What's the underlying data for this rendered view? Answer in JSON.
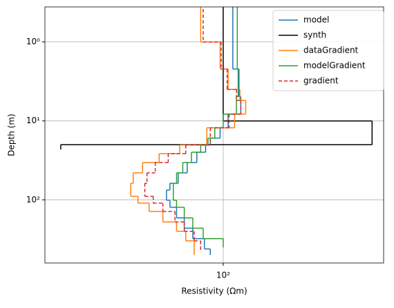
{
  "chart_data": {
    "type": "step",
    "xlabel": "Resistivity (Ωm)",
    "ylabel": "Depth (m)",
    "xscale": "log",
    "yscale": "log",
    "invert_y": true,
    "grid": true,
    "legend": "upper right",
    "xlim": [
      17.1,
      490
    ],
    "xticks": [
      {
        "value": 100,
        "label": "10²"
      }
    ],
    "ylim": [
      0.36,
      630
    ],
    "yticks": [
      {
        "value": 1,
        "label": "10⁰"
      },
      {
        "value": 10,
        "label": "10¹"
      },
      {
        "value": 100,
        "label": "10²"
      }
    ],
    "series": [
      {
        "name": "model",
        "color": "#1f77b4",
        "dash": false,
        "values": [
          110,
          116,
          119,
          105,
          97,
          88,
          84,
          77,
          70,
          64,
          59,
          57,
          59,
          63,
          68,
          74,
          83,
          88
        ],
        "depths": [
          2.2,
          4.9,
          8.2,
          12.2,
          16.5,
          20.2,
          24.9,
          33.6,
          45.5,
          61.6,
          75,
          101,
          124,
          169,
          228,
          309,
          418,
          500
        ]
      },
      {
        "name": "synth",
        "color": "#000000",
        "dash": false,
        "values": [
          100,
          437,
          20
        ],
        "depths": [
          10,
          20,
          23
        ]
      },
      {
        "name": "dataGradient",
        "color": "#ff7f0e",
        "dash": false,
        "values": [
          80,
          97,
          105,
          118,
          125,
          112,
          85,
          65,
          53,
          45,
          41,
          40,
          43,
          48,
          55,
          63,
          69,
          75
        ],
        "depths": [
          1.0,
          2.2,
          4.0,
          5.5,
          8.2,
          12.2,
          20.2,
          26,
          33.6,
          45.5,
          61.6,
          90,
          110,
          140,
          190,
          250,
          330,
          500
        ]
      },
      {
        "name": "modelGradient",
        "color": "#2ca02c",
        "dash": false,
        "values": [
          115,
          117,
          114,
          100,
          92,
          86,
          80,
          73,
          67,
          63,
          61,
          63,
          68,
          74,
          82,
          100
        ],
        "depths": [
          2.2,
          4.9,
          8.2,
          12.2,
          16.5,
          20.2,
          24.9,
          33.6,
          45.5,
          61.6,
          101,
          124,
          169,
          228,
          309,
          400
        ]
      },
      {
        "name": "gradient",
        "color": "#d62728",
        "dash": true,
        "values": [
          82,
          98,
          104,
          114,
          119,
          106,
          88,
          69,
          58,
          51,
          47,
          46,
          50,
          55,
          62,
          68,
          75,
          80
        ],
        "depths": [
          1.0,
          2.2,
          4.0,
          5.5,
          8.2,
          12.2,
          20.2,
          26,
          33.6,
          45.5,
          61.6,
          90,
          110,
          140,
          190,
          250,
          330,
          450
        ]
      }
    ]
  }
}
